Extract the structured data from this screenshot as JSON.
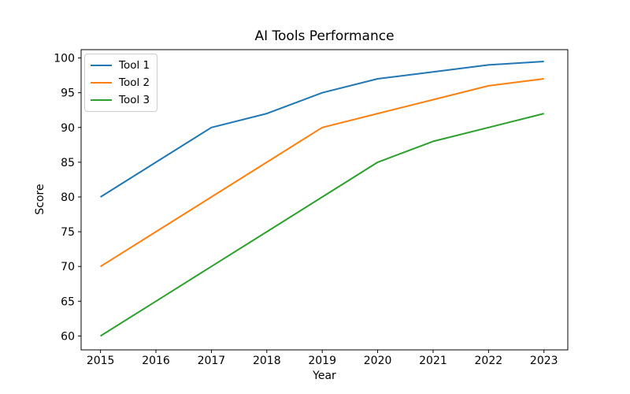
{
  "figure": {
    "background": "#ffffff",
    "axis_color": "#000000",
    "tick_label_color": "#000000"
  },
  "chart_data": {
    "type": "line",
    "title": "AI Tools Performance",
    "xlabel": "Year",
    "ylabel": "Score",
    "x": [
      2015,
      2016,
      2017,
      2018,
      2019,
      2020,
      2021,
      2022,
      2023
    ],
    "xticklabels": [
      "2015",
      "2016",
      "2017",
      "2018",
      "2019",
      "2020",
      "2021",
      "2022",
      "2023"
    ],
    "yticks": [
      60,
      65,
      70,
      75,
      80,
      85,
      90,
      95,
      100
    ],
    "xlim": [
      2014.65,
      2023.43
    ],
    "ylim": [
      58,
      101.2
    ],
    "grid": false,
    "legend_position": "upper-left",
    "series": [
      {
        "name": "Tool 1",
        "color": "#1f77b4",
        "values": [
          80,
          85,
          90,
          92,
          95,
          97,
          98,
          99,
          99.5
        ]
      },
      {
        "name": "Tool 2",
        "color": "#ff7f0e",
        "values": [
          70,
          75,
          80,
          85,
          90,
          92,
          94,
          96,
          97
        ]
      },
      {
        "name": "Tool 3",
        "color": "#2ca02c",
        "values": [
          60,
          65,
          70,
          75,
          80,
          85,
          88,
          90,
          92
        ]
      }
    ]
  }
}
